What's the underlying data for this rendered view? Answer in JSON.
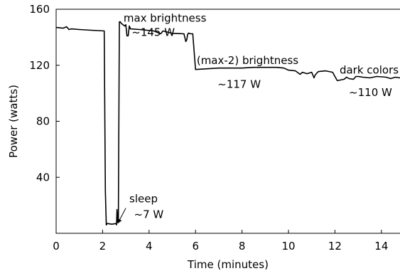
{
  "chart_data": {
    "type": "line",
    "title": "",
    "xlabel": "Time (minutes)",
    "ylabel": "Power (watts)",
    "xlim": [
      0,
      14.8
    ],
    "ylim": [
      0,
      160
    ],
    "xticks": [
      0,
      2,
      4,
      6,
      8,
      10,
      12,
      14
    ],
    "yticks": [
      40,
      80,
      120,
      160
    ],
    "grid": false,
    "legend": "none",
    "series": [
      {
        "name": "",
        "color": "#000000",
        "x": [
          0,
          0.3,
          0.45,
          0.55,
          0.65,
          1.0,
          1.5,
          2.07,
          2.09,
          2.12,
          2.16,
          2.2,
          2.4,
          2.58,
          2.6,
          2.62,
          2.65,
          2.68,
          2.72,
          2.76,
          2.8,
          2.95,
          3.0,
          3.05,
          3.1,
          3.15,
          3.2,
          3.6,
          4.2,
          4.5,
          4.6,
          5.0,
          5.5,
          5.58,
          5.62,
          5.66,
          5.7,
          5.78,
          5.83,
          5.88,
          6.0,
          6.5,
          7.0,
          8.0,
          8.5,
          9.0,
          9.5,
          9.8,
          10.0,
          10.3,
          10.5,
          10.6,
          10.8,
          11.0,
          11.1,
          11.15,
          11.25,
          11.3,
          11.6,
          11.9,
          12.0,
          12.1,
          12.4,
          12.5,
          12.6,
          12.8,
          12.9,
          13.0,
          13.2,
          13.5,
          13.8,
          14.2,
          14.4,
          14.6,
          14.8
        ],
        "y": [
          147,
          146.5,
          147.5,
          145.5,
          146,
          145.5,
          145,
          144.5,
          100,
          30,
          6,
          7,
          6.5,
          7,
          6,
          17,
          8,
          10,
          151,
          151,
          150,
          148,
          149,
          141,
          141,
          148,
          146,
          145.5,
          144.5,
          142.5,
          144.5,
          142.8,
          142.5,
          137,
          138,
          142,
          143,
          142.5,
          142.5,
          142.5,
          117,
          117.5,
          118,
          118,
          118.5,
          118.5,
          118.5,
          118,
          116.5,
          116,
          113.5,
          115,
          114,
          115,
          111,
          113,
          115,
          115.5,
          116,
          115,
          112,
          109,
          110,
          111.5,
          110.5,
          110,
          112,
          112,
          111.5,
          111,
          112,
          111.5,
          110.5,
          111.5,
          111
        ]
      }
    ],
    "annotations": [
      {
        "text": "max brightness",
        "x": 2.9,
        "y": 151
      },
      {
        "text": "~145 W",
        "x": 3.25,
        "y": 141
      },
      {
        "text": "(max-2) brightness",
        "x": 6.05,
        "y": 121
      },
      {
        "text": "~117 W",
        "x": 6.95,
        "y": 104
      },
      {
        "text": "dark colors",
        "x": 12.2,
        "y": 114
      },
      {
        "text": "~110 W",
        "x": 12.6,
        "y": 98
      },
      {
        "text": "sleep",
        "x": 3.15,
        "y": 22
      },
      {
        "text": "~7 W",
        "x": 3.35,
        "y": 11
      }
    ],
    "arrow": {
      "from": [
        3.0,
        18
      ],
      "to": [
        2.65,
        7
      ]
    }
  }
}
